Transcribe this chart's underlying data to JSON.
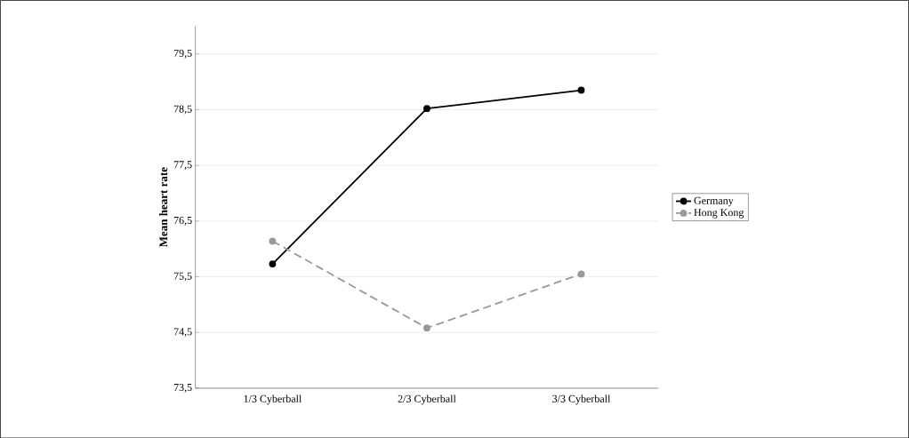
{
  "chart_data": {
    "type": "line",
    "ylabel": "Mean heart rate",
    "categories": [
      "1/3 Cyberball",
      "2/3 Cyberball",
      "3/3 Cyberball"
    ],
    "series": [
      {
        "name": "Germany",
        "color": "#000000",
        "values": [
          75.73,
          78.52,
          78.85
        ],
        "line_style": "solid"
      },
      {
        "name": "Hong Kong",
        "color": "#999999",
        "values": [
          76.14,
          74.58,
          75.55
        ],
        "line_style": "dashed"
      }
    ],
    "ylim": [
      73.5,
      80
    ],
    "yticks": [
      {
        "value": 73.5,
        "label": "73,5"
      },
      {
        "value": 74.5,
        "label": "74,5"
      },
      {
        "value": 75.5,
        "label": "75,5"
      },
      {
        "value": 76.5,
        "label": "76,5"
      },
      {
        "value": 77.5,
        "label": "77,5"
      },
      {
        "value": 78.5,
        "label": "78,5"
      },
      {
        "value": 79.5,
        "label": "79,5"
      }
    ],
    "grid": "y",
    "legend": "right",
    "marker": "circle"
  }
}
